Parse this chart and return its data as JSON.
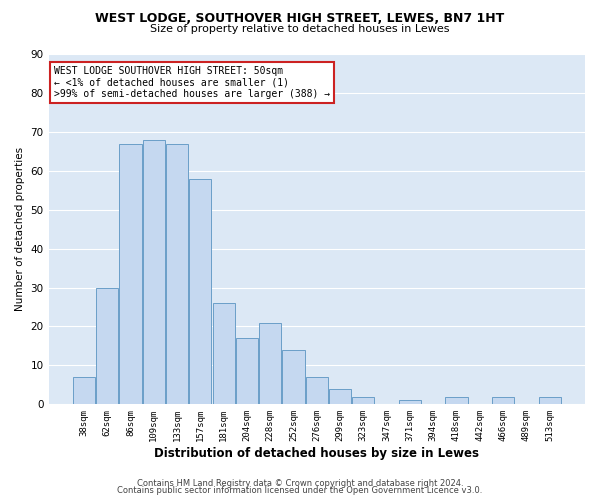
{
  "title": "WEST LODGE, SOUTHOVER HIGH STREET, LEWES, BN7 1HT",
  "subtitle": "Size of property relative to detached houses in Lewes",
  "xlabel": "Distribution of detached houses by size in Lewes",
  "ylabel": "Number of detached properties",
  "bar_color": "#c5d8f0",
  "bar_edgecolor": "#6a9ec8",
  "bin_labels": [
    "38sqm",
    "62sqm",
    "86sqm",
    "109sqm",
    "133sqm",
    "157sqm",
    "181sqm",
    "204sqm",
    "228sqm",
    "252sqm",
    "276sqm",
    "299sqm",
    "323sqm",
    "347sqm",
    "371sqm",
    "394sqm",
    "418sqm",
    "442sqm",
    "466sqm",
    "489sqm",
    "513sqm"
  ],
  "bar_values": [
    7,
    30,
    67,
    68,
    67,
    58,
    26,
    17,
    21,
    14,
    7,
    4,
    2,
    0,
    1,
    0,
    2,
    0,
    2,
    0,
    2
  ],
  "ylim": [
    0,
    90
  ],
  "yticks": [
    0,
    10,
    20,
    30,
    40,
    50,
    60,
    70,
    80,
    90
  ],
  "annotation_title": "WEST LODGE SOUTHOVER HIGH STREET: 50sqm",
  "annotation_line1": "← <1% of detached houses are smaller (1)",
  "annotation_line2": ">99% of semi-detached houses are larger (388) →",
  "footer1": "Contains HM Land Registry data © Crown copyright and database right 2024.",
  "footer2": "Contains public sector information licensed under the Open Government Licence v3.0.",
  "background_color": "#dce8f5",
  "grid_color": "#b0c8e0"
}
